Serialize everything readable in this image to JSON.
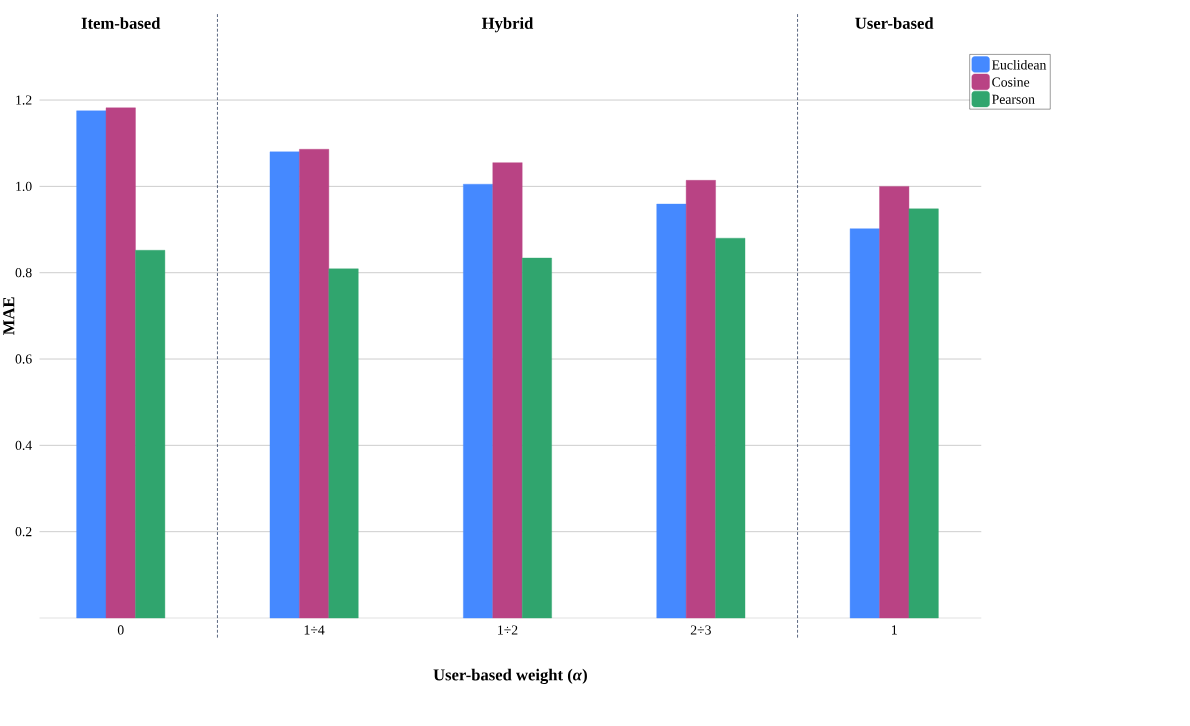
{
  "chart_data": {
    "type": "bar",
    "xlabel": "User-based weight (*α*)",
    "ylabel": "MAE",
    "categories": [
      "0",
      "1÷4",
      "1÷2",
      "2÷3",
      "1"
    ],
    "series": [
      {
        "name": "Euclidean",
        "color": "#4589ff",
        "values": [
          1.175,
          1.08,
          1.005,
          0.959,
          0.902
        ]
      },
      {
        "name": "Cosine",
        "color": "#b94384",
        "values": [
          1.182,
          1.086,
          1.055,
          1.014,
          1.0
        ]
      },
      {
        "name": "Pearson",
        "color": "#30a56e",
        "values": [
          0.852,
          0.809,
          0.834,
          0.88,
          0.948
        ]
      }
    ],
    "ylim": [
      0,
      1.4
    ],
    "yticks": [
      0.2,
      0.4,
      0.6,
      0.8,
      {
        "value": 1,
        "label": "1.0"
      },
      1.2
    ],
    "grid": "y",
    "legend": "top right",
    "annotations": [
      "Item-based",
      "Hybrid",
      "User-based"
    ]
  }
}
